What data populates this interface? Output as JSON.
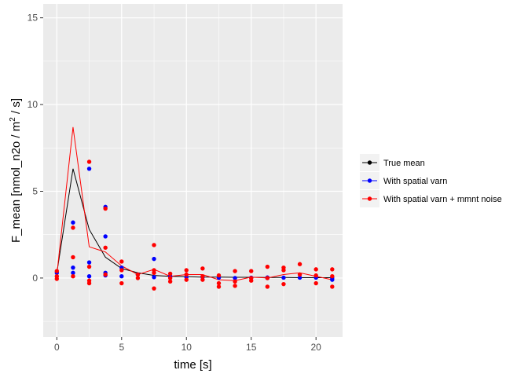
{
  "chart_data": {
    "type": "line",
    "title": "",
    "xlabel": "time [s]",
    "ylabel_parts": {
      "before": "F_mean [nmol_n2o / m",
      "sup": "2",
      "after": " / s]"
    },
    "xlim": [
      -1.05,
      22.05
    ],
    "ylim": [
      -3.4,
      15.8
    ],
    "x_ticks": [
      0,
      5,
      10,
      15,
      20
    ],
    "x_tick_labels": [
      "0",
      "5",
      "10",
      "15",
      "20"
    ],
    "x_minor": [
      2.5,
      7.5,
      12.5,
      17.5
    ],
    "y_ticks": [
      0,
      5,
      10,
      15
    ],
    "y_tick_labels": [
      "0",
      "5",
      "10",
      "15"
    ],
    "y_minor": [
      -2.5,
      2.5,
      7.5,
      12.5
    ],
    "grid": true,
    "legend_position": "right",
    "series": [
      {
        "name": "True mean",
        "color": "#000000",
        "line": [
          [
            0,
            0.3
          ],
          [
            1.25,
            6.3
          ],
          [
            2.5,
            2.8
          ],
          [
            3.75,
            1.2
          ],
          [
            5,
            0.55
          ],
          [
            6.25,
            0.3
          ],
          [
            7.5,
            0.15
          ],
          [
            8.75,
            0.1
          ],
          [
            10,
            0.08
          ],
          [
            11.25,
            0.05
          ],
          [
            12.5,
            0.05
          ],
          [
            13.75,
            0.04
          ],
          [
            15,
            0.04
          ],
          [
            16.25,
            0.03
          ],
          [
            17.5,
            0.03
          ],
          [
            18.75,
            0.02
          ],
          [
            20,
            0.02
          ],
          [
            21.25,
            0.02
          ]
        ],
        "points": []
      },
      {
        "name": "With spatial varn",
        "color": "#0000FF",
        "line": [],
        "points": [
          [
            0,
            0.3
          ],
          [
            1.25,
            3.2
          ],
          [
            1.25,
            0.6
          ],
          [
            1.25,
            0.3
          ],
          [
            2.5,
            6.3
          ],
          [
            2.5,
            0.9
          ],
          [
            2.5,
            0.1
          ],
          [
            3.75,
            4.1
          ],
          [
            3.75,
            2.4
          ],
          [
            3.75,
            0.3
          ],
          [
            3.75,
            0.15
          ],
          [
            5,
            0.6
          ],
          [
            5,
            0.1
          ],
          [
            6.25,
            0.2
          ],
          [
            7.5,
            1.1
          ],
          [
            7.5,
            0.05
          ],
          [
            8.75,
            0.1
          ],
          [
            10,
            0.05
          ],
          [
            11.25,
            0.05
          ],
          [
            12.5,
            0.02
          ],
          [
            13.75,
            0.0
          ],
          [
            15,
            0.02
          ],
          [
            16.25,
            0.03
          ],
          [
            16.25,
            0.0
          ],
          [
            17.5,
            0.02
          ],
          [
            18.75,
            0.02
          ],
          [
            20,
            0.02
          ],
          [
            21.25,
            0.0
          ],
          [
            21.25,
            -0.1
          ]
        ]
      },
      {
        "name": "With spatial varn + mmnt noise",
        "color": "#FF0000",
        "line": [
          [
            0,
            0.2
          ],
          [
            1.25,
            8.7
          ],
          [
            2.5,
            1.8
          ],
          [
            3.75,
            1.5
          ],
          [
            5,
            0.7
          ],
          [
            6.25,
            0.2
          ],
          [
            7.5,
            0.5
          ],
          [
            8.75,
            0.1
          ],
          [
            10,
            0.2
          ],
          [
            11.25,
            0.2
          ],
          [
            12.5,
            -0.1
          ],
          [
            13.75,
            -0.15
          ],
          [
            15,
            0.05
          ],
          [
            16.25,
            0.0
          ],
          [
            17.5,
            0.2
          ],
          [
            18.75,
            0.3
          ],
          [
            20,
            0.1
          ],
          [
            21.25,
            -0.1
          ]
        ],
        "points": [
          [
            0,
            0.4
          ],
          [
            0,
            0.1
          ],
          [
            0,
            -0.05
          ],
          [
            1.25,
            2.9
          ],
          [
            1.25,
            1.2
          ],
          [
            1.25,
            0.1
          ],
          [
            2.5,
            6.7
          ],
          [
            2.5,
            0.65
          ],
          [
            2.5,
            -0.15
          ],
          [
            2.5,
            -0.3
          ],
          [
            3.75,
            4.0
          ],
          [
            3.75,
            1.75
          ],
          [
            3.75,
            0.2
          ],
          [
            5,
            0.95
          ],
          [
            5,
            0.45
          ],
          [
            5,
            -0.3
          ],
          [
            6.25,
            0.2
          ],
          [
            6.25,
            0.0
          ],
          [
            7.5,
            1.9
          ],
          [
            7.5,
            0.45
          ],
          [
            7.5,
            0.3
          ],
          [
            7.5,
            -0.6
          ],
          [
            8.75,
            0.25
          ],
          [
            8.75,
            0.0
          ],
          [
            8.75,
            -0.2
          ],
          [
            10,
            0.45
          ],
          [
            10,
            0.2
          ],
          [
            10,
            -0.1
          ],
          [
            11.25,
            0.55
          ],
          [
            11.25,
            0.1
          ],
          [
            11.25,
            -0.1
          ],
          [
            12.5,
            0.15
          ],
          [
            12.5,
            -0.3
          ],
          [
            12.5,
            -0.5
          ],
          [
            13.75,
            0.4
          ],
          [
            13.75,
            -0.2
          ],
          [
            13.75,
            -0.45
          ],
          [
            15,
            0.4
          ],
          [
            15,
            0.0
          ],
          [
            15,
            -0.15
          ],
          [
            16.25,
            0.65
          ],
          [
            16.25,
            0.0
          ],
          [
            16.25,
            -0.5
          ],
          [
            17.5,
            0.6
          ],
          [
            17.5,
            0.45
          ],
          [
            17.5,
            -0.35
          ],
          [
            18.75,
            0.8
          ],
          [
            18.75,
            0.2
          ],
          [
            20,
            0.5
          ],
          [
            20,
            0.15
          ],
          [
            20,
            -0.3
          ],
          [
            21.25,
            0.5
          ],
          [
            21.25,
            0.1
          ],
          [
            21.25,
            -0.5
          ]
        ]
      }
    ]
  }
}
